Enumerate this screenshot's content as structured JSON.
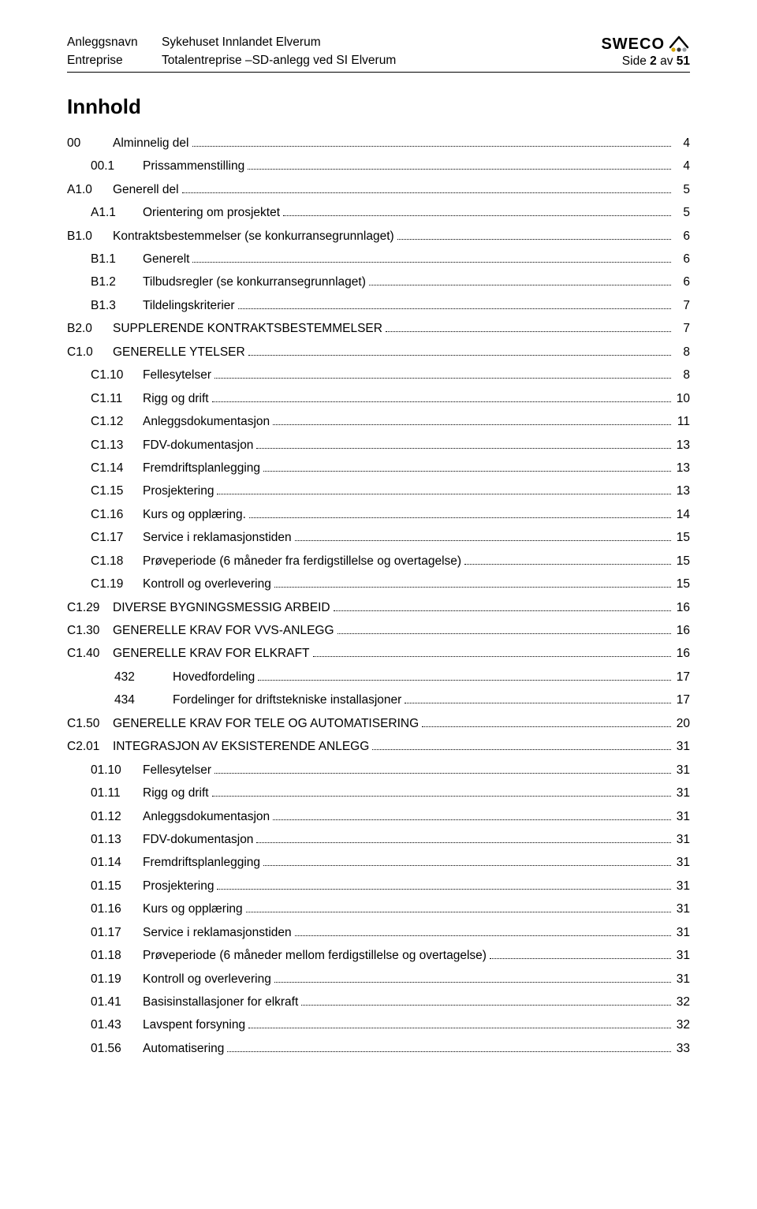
{
  "header": {
    "left_label_1": "Anleggsnavn",
    "left_value_1": "Sykehuset Innlandet Elverum",
    "left_label_2": "Entreprise",
    "left_value_2": "Totalentreprise –SD-anlegg ved SI Elverum",
    "logo_text": "SWECO",
    "page_prefix": "Side ",
    "page_current": "2",
    "page_sep": " av ",
    "page_total": "51"
  },
  "toc_title": "Innhold",
  "toc": [
    {
      "level": 0,
      "num": "00",
      "label": "Alminnelig del",
      "page": "4"
    },
    {
      "level": 1,
      "num": "00.1",
      "label": "Prissammenstilling",
      "page": "4"
    },
    {
      "level": 0,
      "num": "A1.0",
      "label": "Generell del",
      "page": "5"
    },
    {
      "level": 1,
      "num": "A1.1",
      "label": "Orientering om prosjektet",
      "page": "5"
    },
    {
      "level": 0,
      "num": "B1.0",
      "label": "Kontraktsbestemmelser (se konkurransegrunnlaget)",
      "page": "6"
    },
    {
      "level": 1,
      "num": "B1.1",
      "label": "Generelt",
      "page": "6"
    },
    {
      "level": 1,
      "num": "B1.2",
      "label": "Tilbudsregler (se konkurransegrunnlaget)",
      "page": "6"
    },
    {
      "level": 1,
      "num": "B1.3",
      "label": "Tildelingskriterier",
      "page": "7"
    },
    {
      "level": 0,
      "num": "B2.0",
      "label": "SUPPLERENDE KONTRAKTSBESTEMMELSER",
      "page": "7"
    },
    {
      "level": 0,
      "num": "C1.0",
      "label": "GENERELLE YTELSER",
      "page": "8"
    },
    {
      "level": 1,
      "num": "C1.10",
      "label": "Fellesytelser",
      "page": "8"
    },
    {
      "level": 1,
      "num": "C1.11",
      "label": "Rigg og drift",
      "page": "10"
    },
    {
      "level": 1,
      "num": "C1.12",
      "label": "Anleggsdokumentasjon",
      "page": "11"
    },
    {
      "level": 1,
      "num": "C1.13",
      "label": "FDV-dokumentasjon",
      "page": "13"
    },
    {
      "level": 1,
      "num": "C1.14",
      "label": "Fremdriftsplanlegging",
      "page": "13"
    },
    {
      "level": 1,
      "num": "C1.15",
      "label": "Prosjektering",
      "page": "13"
    },
    {
      "level": 1,
      "num": "C1.16",
      "label": "Kurs og opplæring.",
      "page": "14"
    },
    {
      "level": 1,
      "num": "C1.17",
      "label": "Service i reklamasjonstiden",
      "page": "15"
    },
    {
      "level": 1,
      "num": "C1.18",
      "label": "Prøveperiode (6 måneder fra ferdigstillelse og overtagelse)",
      "page": "15"
    },
    {
      "level": 1,
      "num": "C1.19",
      "label": "Kontroll og overlevering",
      "page": "15"
    },
    {
      "level": 0,
      "num": "C1.29",
      "label": "DIVERSE BYGNINGSMESSIG ARBEID",
      "page": "16"
    },
    {
      "level": 0,
      "num": "C1.30",
      "label": "GENERELLE KRAV FOR VVS-ANLEGG",
      "page": "16"
    },
    {
      "level": 0,
      "num": "C1.40",
      "label": "GENERELLE KRAV FOR ELKRAFT",
      "page": "16"
    },
    {
      "level": 2,
      "num": "432",
      "label": "Hovedfordeling",
      "page": "17"
    },
    {
      "level": 2,
      "num": "434",
      "label": "Fordelinger for driftstekniske installasjoner",
      "page": "17"
    },
    {
      "level": 0,
      "num": "C1.50",
      "label": "GENERELLE KRAV FOR TELE OG AUTOMATISERING",
      "page": "20"
    },
    {
      "level": 0,
      "num": "C2.01",
      "label": "INTEGRASJON AV EKSISTERENDE ANLEGG",
      "page": "31"
    },
    {
      "level": 1,
      "num": "01.10",
      "label": "Fellesytelser",
      "page": "31"
    },
    {
      "level": 1,
      "num": "01.11",
      "label": "Rigg og drift",
      "page": "31"
    },
    {
      "level": 1,
      "num": "01.12",
      "label": "Anleggsdokumentasjon",
      "page": "31"
    },
    {
      "level": 1,
      "num": "01.13",
      "label": "FDV-dokumentasjon",
      "page": "31"
    },
    {
      "level": 1,
      "num": "01.14",
      "label": "Fremdriftsplanlegging",
      "page": "31"
    },
    {
      "level": 1,
      "num": "01.15",
      "label": "Prosjektering",
      "page": "31"
    },
    {
      "level": 1,
      "num": "01.16",
      "label": "Kurs og opplæring",
      "page": "31"
    },
    {
      "level": 1,
      "num": "01.17",
      "label": "Service i reklamasjonstiden",
      "page": "31"
    },
    {
      "level": 1,
      "num": "01.18",
      "label": "Prøveperiode (6 måneder mellom ferdigstillelse og overtagelse)",
      "page": "31"
    },
    {
      "level": 1,
      "num": "01.19",
      "label": "Kontroll og overlevering",
      "page": "31"
    },
    {
      "level": 1,
      "num": "01.41",
      "label": "Basisinstallasjoner for elkraft",
      "page": "32"
    },
    {
      "level": 1,
      "num": "01.43",
      "label": "Lavspent forsyning",
      "page": "32"
    },
    {
      "level": 1,
      "num": "01.56",
      "label": "Automatisering",
      "page": "33"
    }
  ]
}
